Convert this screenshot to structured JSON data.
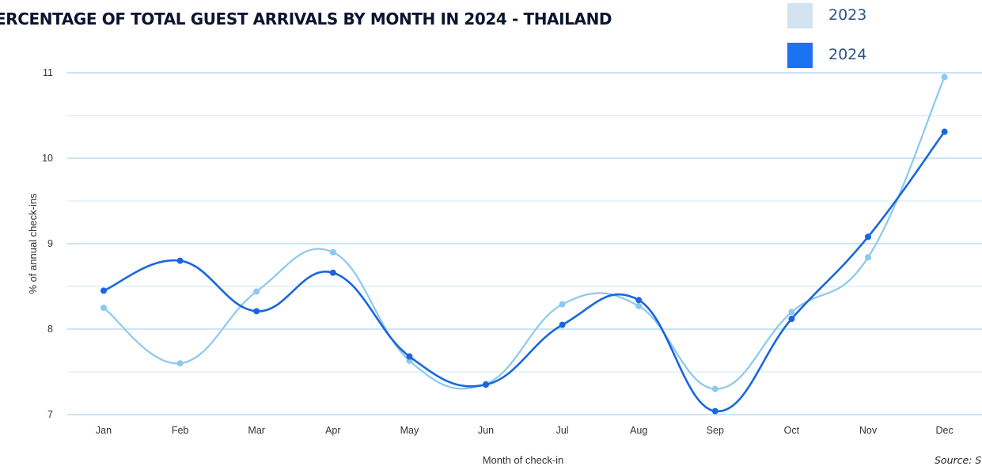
{
  "page": {
    "title": "ERCENTAGE OF TOTAL GUEST ARRIVALS BY MONTH IN 2024 - THAILAND",
    "source": "Source: S"
  },
  "chart_data": {
    "type": "line",
    "title": "ERCENTAGE OF TOTAL GUEST ARRIVALS BY MONTH IN 2024 - THAILAND",
    "xlabel": "Month of check-in",
    "ylabel": "% of annual check-ins",
    "categories": [
      "Jan",
      "Feb",
      "Mar",
      "Apr",
      "May",
      "Jun",
      "Jul",
      "Aug",
      "Sep",
      "Oct",
      "Nov",
      "Dec"
    ],
    "ylim": [
      7,
      11
    ],
    "yticks": [
      "7",
      "8",
      "9",
      "10",
      "11"
    ],
    "grid": true,
    "legend_position": "top-right",
    "series": [
      {
        "name": "2023",
        "color": "#8cc8ef",
        "swatch_color": "#d3e4f0",
        "values": [
          8.25,
          7.6,
          8.44,
          8.9,
          7.63,
          7.36,
          8.29,
          8.27,
          7.3,
          8.2,
          8.84,
          10.95
        ]
      },
      {
        "name": "2024",
        "color": "#1a66de",
        "swatch_color": "#1a73f0",
        "values": [
          8.45,
          8.8,
          8.21,
          8.66,
          7.68,
          7.35,
          8.05,
          8.34,
          7.04,
          8.12,
          9.08,
          10.31
        ]
      }
    ]
  }
}
